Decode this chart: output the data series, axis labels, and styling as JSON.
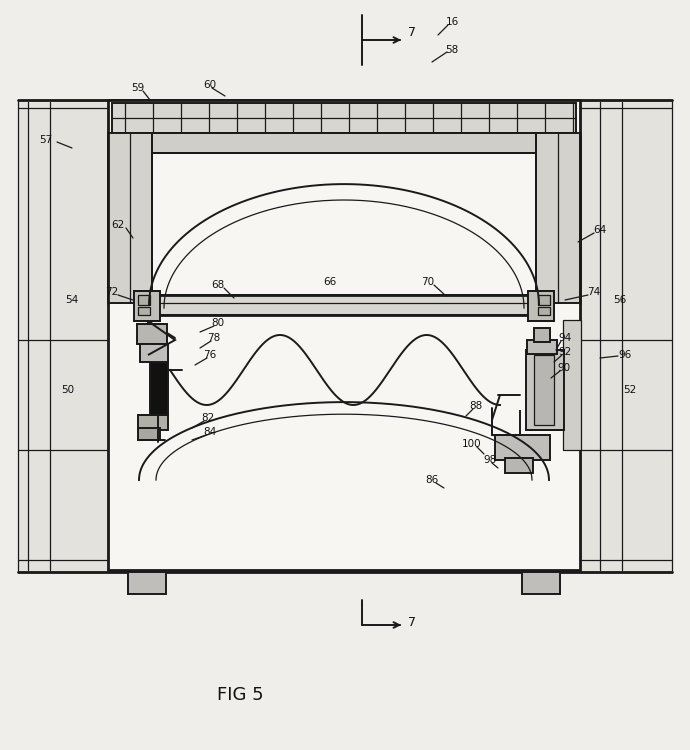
{
  "bg_color": "#f0eeea",
  "line_color": "#1a1a1a",
  "title": "FIG 5",
  "fig_width": 6.9,
  "fig_height": 7.5,
  "dpi": 100
}
